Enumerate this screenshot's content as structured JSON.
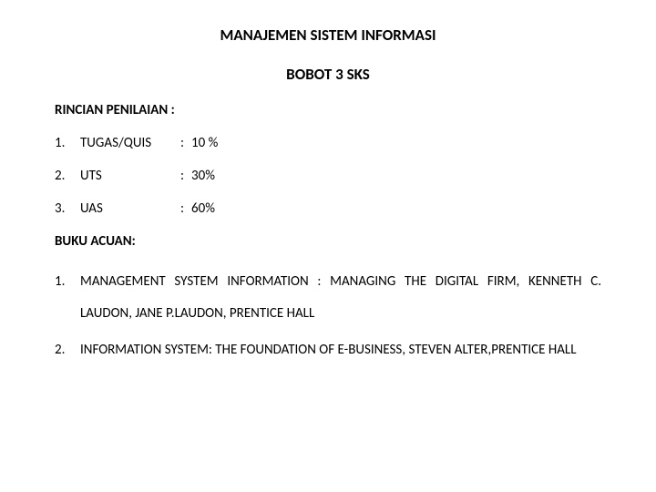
{
  "title": "MANAJEMEN SISTEM INFORMASI",
  "subtitle": "BOBOT 3 SKS",
  "grading_header": "RINCIAN PENILAIAN :",
  "grading": [
    {
      "num": "1.",
      "label": "TUGAS/QUIS",
      "sep": ":",
      "value": "10 %"
    },
    {
      "num": "2.",
      "label": "UTS",
      "sep": ":",
      "value": "30%"
    },
    {
      "num": "3.",
      "label": "UAS",
      "sep": ":",
      "value": "60%"
    }
  ],
  "references_header": "BUKU ACUAN:",
  "references": [
    {
      "num": "1.",
      "text": "MANAGEMENT SYSTEM INFORMATION : MANAGING THE DIGITAL FIRM, KENNETH C. LAUDON, JANE P.LAUDON, PRENTICE HALL"
    },
    {
      "num": "2.",
      "text": "INFORMATION SYSTEM: THE FOUNDATION OF E-BUSINESS, STEVEN ALTER,PRENTICE HALL"
    }
  ],
  "colors": {
    "background": "#ffffff",
    "text": "#000000"
  },
  "typography": {
    "font_family": "Calibri",
    "title_size_pt": 17,
    "body_size_pt": 15,
    "title_weight": "bold",
    "header_weight": "bold"
  }
}
